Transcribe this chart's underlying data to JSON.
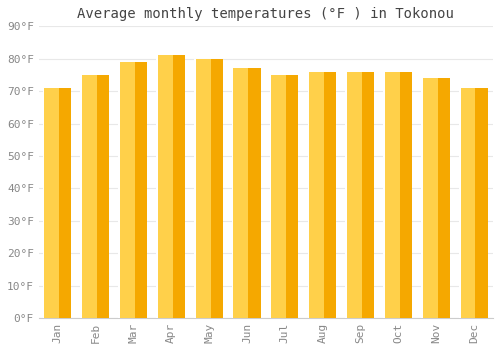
{
  "title": "Average monthly temperatures (°F ) in Tokonou",
  "months": [
    "Jan",
    "Feb",
    "Mar",
    "Apr",
    "May",
    "Jun",
    "Jul",
    "Aug",
    "Sep",
    "Oct",
    "Nov",
    "Dec"
  ],
  "values": [
    71,
    75,
    79,
    81,
    80,
    77,
    75,
    76,
    76,
    76,
    74,
    71
  ],
  "bar_color_left": "#FFD04A",
  "bar_color_right": "#F5A800",
  "background_color": "#FFFFFF",
  "grid_color": "#E8E8E8",
  "ylim": [
    0,
    90
  ],
  "yticks": [
    0,
    10,
    20,
    30,
    40,
    50,
    60,
    70,
    80,
    90
  ],
  "ytick_labels": [
    "0°F",
    "10°F",
    "20°F",
    "30°F",
    "40°F",
    "50°F",
    "60°F",
    "70°F",
    "80°F",
    "90°F"
  ],
  "title_fontsize": 10,
  "tick_fontsize": 8,
  "title_color": "#444444",
  "tick_color": "#888888",
  "bar_width": 0.72,
  "bar_gap_color": "#FFFFFF"
}
